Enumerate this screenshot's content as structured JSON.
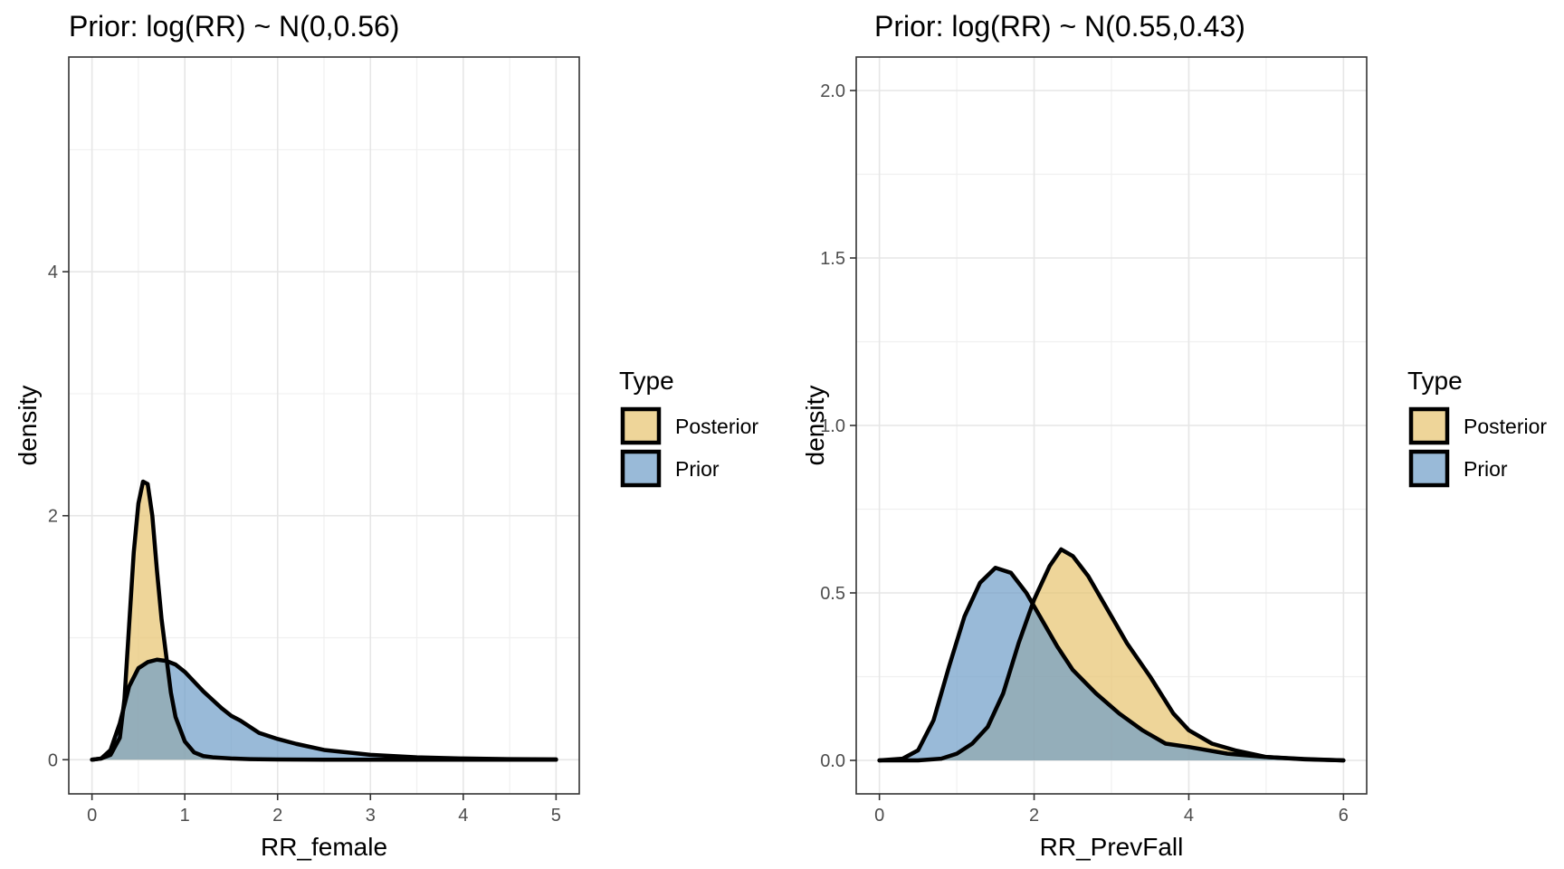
{
  "chart_data": [
    {
      "type": "area",
      "title": "Prior: log(RR) ~ N(0,0.56)",
      "xlabel": "RR_female",
      "ylabel": "density",
      "xlim": [
        -0.25,
        5.25
      ],
      "ylim": [
        -0.28,
        5.76
      ],
      "x_ticks": [
        0,
        1,
        2,
        3,
        4,
        5
      ],
      "x_tick_labels": [
        "0",
        "1",
        "2",
        "3",
        "4",
        "5"
      ],
      "y_ticks": [
        0,
        2,
        4
      ],
      "y_tick_labels": [
        "0",
        "2",
        "4"
      ],
      "grid": true,
      "legend": {
        "title": "Type",
        "placement": "right"
      },
      "series": [
        {
          "name": "Posterior",
          "color": "#E7C36E",
          "x": [
            0.0,
            0.1,
            0.2,
            0.3,
            0.35,
            0.4,
            0.45,
            0.5,
            0.55,
            0.6,
            0.65,
            0.7,
            0.75,
            0.8,
            0.85,
            0.9,
            1.0,
            1.1,
            1.2,
            1.3,
            1.5,
            1.7,
            2.0,
            2.5,
            3.0,
            4.0,
            5.0
          ],
          "values": [
            0.0,
            0.01,
            0.04,
            0.18,
            0.5,
            1.1,
            1.7,
            2.1,
            2.28,
            2.26,
            2.0,
            1.55,
            1.15,
            0.85,
            0.55,
            0.35,
            0.15,
            0.06,
            0.03,
            0.02,
            0.01,
            0.005,
            0.002,
            0.0,
            0.0,
            0.0,
            0.0
          ]
        },
        {
          "name": "Prior",
          "color": "#6E9CC8",
          "x": [
            0.0,
            0.1,
            0.2,
            0.3,
            0.4,
            0.5,
            0.6,
            0.7,
            0.8,
            0.9,
            1.0,
            1.1,
            1.2,
            1.3,
            1.4,
            1.5,
            1.6,
            1.7,
            1.8,
            2.0,
            2.2,
            2.5,
            3.0,
            3.5,
            4.0,
            4.5,
            5.0
          ],
          "values": [
            0.0,
            0.01,
            0.08,
            0.3,
            0.6,
            0.75,
            0.8,
            0.82,
            0.81,
            0.78,
            0.72,
            0.64,
            0.56,
            0.49,
            0.42,
            0.36,
            0.32,
            0.27,
            0.22,
            0.17,
            0.13,
            0.08,
            0.04,
            0.02,
            0.01,
            0.005,
            0.003
          ]
        }
      ]
    },
    {
      "type": "area",
      "title": "Prior: log(RR) ~ N(0.55,0.43)",
      "xlabel": "RR_PrevFall",
      "ylabel": "density",
      "xlim": [
        -0.3,
        6.3
      ],
      "ylim": [
        -0.1,
        2.1
      ],
      "x_ticks": [
        0,
        2,
        4,
        6
      ],
      "x_tick_labels": [
        "0",
        "2",
        "4",
        "6"
      ],
      "y_ticks": [
        0.0,
        0.5,
        1.0,
        1.5,
        2.0
      ],
      "y_tick_labels": [
        "0.0",
        "0.5",
        "1.0",
        "1.5",
        "2.0"
      ],
      "grid": true,
      "legend": {
        "title": "Type",
        "placement": "right"
      },
      "series": [
        {
          "name": "Posterior",
          "color": "#E7C36E",
          "x": [
            0.0,
            0.5,
            0.8,
            1.0,
            1.2,
            1.4,
            1.6,
            1.8,
            2.0,
            2.2,
            2.35,
            2.5,
            2.7,
            3.0,
            3.2,
            3.5,
            3.8,
            4.0,
            4.3,
            4.6,
            5.0,
            5.5,
            6.0
          ],
          "values": [
            0.0,
            0.0,
            0.005,
            0.02,
            0.05,
            0.1,
            0.2,
            0.35,
            0.48,
            0.58,
            0.63,
            0.61,
            0.55,
            0.43,
            0.35,
            0.25,
            0.14,
            0.09,
            0.05,
            0.03,
            0.01,
            0.003,
            0.0
          ]
        },
        {
          "name": "Prior",
          "color": "#6E9CC8",
          "x": [
            0.0,
            0.3,
            0.5,
            0.7,
            0.9,
            1.1,
            1.3,
            1.5,
            1.7,
            1.9,
            2.1,
            2.3,
            2.5,
            2.8,
            3.1,
            3.4,
            3.7,
            4.0,
            4.5,
            5.0,
            5.5,
            6.0
          ],
          "values": [
            0.0,
            0.005,
            0.03,
            0.12,
            0.28,
            0.43,
            0.53,
            0.575,
            0.56,
            0.5,
            0.42,
            0.34,
            0.27,
            0.2,
            0.14,
            0.09,
            0.05,
            0.04,
            0.02,
            0.01,
            0.004,
            0.0
          ]
        }
      ]
    }
  ]
}
